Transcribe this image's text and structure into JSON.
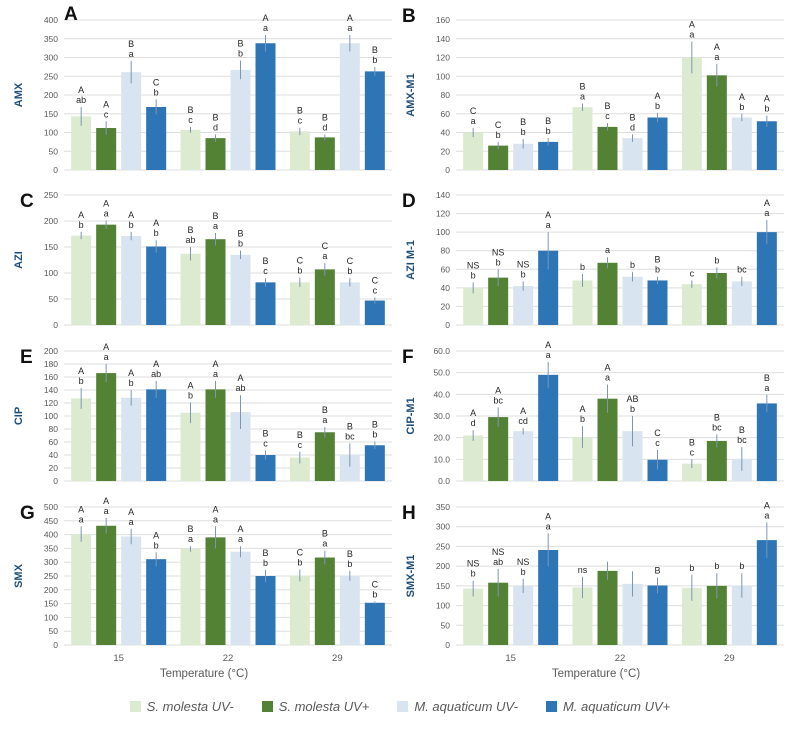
{
  "figure": {
    "xlabel": "Temperature (°C)",
    "categories": [
      "15",
      "22",
      "29"
    ],
    "legend": [
      {
        "label": "S. molesta UV-",
        "color": "#dcead0"
      },
      {
        "label": "S. molesta UV+",
        "color": "#548235"
      },
      {
        "label": "M. aquaticum UV-",
        "color": "#d9e4f1"
      },
      {
        "label": "M. aquaticum UV+",
        "color": "#2e75b6"
      }
    ],
    "style": {
      "grid_color": "#dedede",
      "error_bar_color": "#7e96b5",
      "tick_label_color": "#595959",
      "ylabel_color": "#1f4e79",
      "annotation_color": "#262626"
    }
  },
  "chart_data": [
    {
      "type": "bar",
      "letter": "A",
      "ylabel": "AMX",
      "ylim": [
        0,
        400
      ],
      "ystep": 50,
      "decimals": 0,
      "categories": [
        "15",
        "22",
        "29"
      ],
      "series": [
        {
          "name": "S. molesta UV-",
          "values": [
            143,
            107,
            103
          ],
          "errors": [
            25,
            8,
            10
          ],
          "ann": [
            [
              "A",
              "ab"
            ],
            [
              "B",
              "c"
            ],
            [
              "B",
              "c"
            ]
          ]
        },
        {
          "name": "S. molesta UV+",
          "values": [
            112,
            85,
            87
          ],
          "errors": [
            18,
            10,
            8
          ],
          "ann": [
            [
              "A",
              "c"
            ],
            [
              "B",
              "d"
            ],
            [
              "B",
              "d"
            ]
          ]
        },
        {
          "name": "M. aquaticum UV-",
          "values": [
            261,
            267,
            338
          ],
          "errors": [
            30,
            25,
            22
          ],
          "ann": [
            [
              "B",
              "a"
            ],
            [
              "B",
              "b"
            ],
            [
              "A",
              "a"
            ]
          ]
        },
        {
          "name": "M. aquaticum UV+",
          "values": [
            168,
            338,
            263
          ],
          "errors": [
            20,
            22,
            12
          ],
          "ann": [
            [
              "C",
              "b"
            ],
            [
              "A",
              "a"
            ],
            [
              "B",
              "b"
            ]
          ]
        }
      ]
    },
    {
      "type": "bar",
      "letter": "B",
      "ylabel": "AMX-M1",
      "ylim": [
        0,
        160
      ],
      "ystep": 20,
      "decimals": 0,
      "categories": [
        "15",
        "22",
        "29"
      ],
      "series": [
        {
          "name": "S. molesta UV-",
          "values": [
            40,
            67,
            120
          ],
          "errors": [
            5,
            4,
            17
          ],
          "ann": [
            [
              "C",
              "a"
            ],
            [
              "B",
              "a"
            ],
            [
              "A",
              "a"
            ]
          ]
        },
        {
          "name": "S. molesta UV+",
          "values": [
            26,
            46,
            101
          ],
          "errors": [
            4,
            4,
            12
          ],
          "ann": [
            [
              "C",
              "b"
            ],
            [
              "B",
              "c"
            ],
            [
              "A",
              "a"
            ]
          ]
        },
        {
          "name": "M. aquaticum UV-",
          "values": [
            28,
            34,
            56
          ],
          "errors": [
            5,
            4,
            4
          ],
          "ann": [
            [
              "B",
              "b"
            ],
            [
              "B",
              "d"
            ],
            [
              "A",
              "b"
            ]
          ]
        },
        {
          "name": "M. aquaticum UV+",
          "values": [
            30,
            56,
            52
          ],
          "errors": [
            4,
            5,
            6
          ],
          "ann": [
            [
              "B",
              "b"
            ],
            [
              "A",
              "b"
            ],
            [
              "A",
              "b"
            ]
          ]
        }
      ]
    },
    {
      "type": "bar",
      "letter": "C",
      "ylabel": "AZI",
      "ylim": [
        0,
        250
      ],
      "ystep": 50,
      "decimals": 0,
      "categories": [
        "15",
        "22",
        "29"
      ],
      "series": [
        {
          "name": "S. molesta UV-",
          "values": [
            172,
            137,
            82
          ],
          "errors": [
            7,
            13,
            9
          ],
          "ann": [
            [
              "A",
              "b"
            ],
            [
              "B",
              "ab"
            ],
            [
              "C",
              "b"
            ]
          ]
        },
        {
          "name": "S. molesta UV+",
          "values": [
            193,
            165,
            107
          ],
          "errors": [
            8,
            12,
            12
          ],
          "ann": [
            [
              "A",
              "a"
            ],
            [
              "B",
              "a"
            ],
            [
              "C",
              "a"
            ]
          ]
        },
        {
          "name": "M. aquaticum UV-",
          "values": [
            171,
            135,
            82
          ],
          "errors": [
            8,
            8,
            8
          ],
          "ann": [
            [
              "A",
              "b"
            ],
            [
              "B",
              "b"
            ],
            [
              "C",
              "b"
            ]
          ]
        },
        {
          "name": "M. aquaticum UV+",
          "values": [
            151,
            82,
            47
          ],
          "errors": [
            12,
            8,
            6
          ],
          "ann": [
            [
              "A",
              "b"
            ],
            [
              "B",
              "c"
            ],
            [
              "C",
              "c"
            ]
          ]
        }
      ]
    },
    {
      "type": "bar",
      "letter": "D",
      "ylabel": "AZI M-1",
      "ylim": [
        0,
        140
      ],
      "ystep": 20,
      "decimals": 0,
      "categories": [
        "15",
        "22",
        "29"
      ],
      "series": [
        {
          "name": "S. molesta UV-",
          "values": [
            40,
            48,
            44
          ],
          "errors": [
            6,
            7,
            4
          ],
          "ann": [
            [
              "NS",
              "b"
            ],
            [
              "",
              "b"
            ],
            [
              "",
              "c"
            ]
          ]
        },
        {
          "name": "S. molesta UV+",
          "values": [
            51,
            67,
            56
          ],
          "errors": [
            9,
            6,
            6
          ],
          "ann": [
            [
              "NS",
              "b"
            ],
            [
              "",
              "a"
            ],
            [
              "",
              "b"
            ]
          ]
        },
        {
          "name": "M. aquaticum UV-",
          "values": [
            42,
            52,
            47
          ],
          "errors": [
            5,
            5,
            5
          ],
          "ann": [
            [
              "NS",
              "b"
            ],
            [
              "",
              "b"
            ],
            [
              "",
              "bc"
            ]
          ]
        },
        {
          "name": "M. aquaticum UV+",
          "values": [
            80,
            48,
            100
          ],
          "errors": [
            20,
            4,
            13
          ],
          "ann": [
            [
              "A",
              "a"
            ],
            [
              "B",
              "b"
            ],
            [
              "A",
              "a"
            ]
          ]
        }
      ]
    },
    {
      "type": "bar",
      "letter": "E",
      "ylabel": "CIP",
      "ylim": [
        0,
        200
      ],
      "ystep": 20,
      "decimals": 0,
      "categories": [
        "15",
        "22",
        "29"
      ],
      "series": [
        {
          "name": "S. molesta UV-",
          "values": [
            127,
            105,
            36
          ],
          "errors": [
            16,
            16,
            9
          ],
          "ann": [
            [
              "A",
              "b"
            ],
            [
              "A",
              "b"
            ],
            [
              "B",
              "c"
            ]
          ]
        },
        {
          "name": "S. molesta UV+",
          "values": [
            166,
            141,
            75
          ],
          "errors": [
            14,
            13,
            8
          ],
          "ann": [
            [
              "A",
              "a"
            ],
            [
              "A",
              "a"
            ],
            [
              "B",
              "a"
            ]
          ]
        },
        {
          "name": "M. aquaticum UV-",
          "values": [
            128,
            106,
            40
          ],
          "errors": [
            12,
            26,
            18
          ],
          "ann": [
            [
              "A",
              "b"
            ],
            [
              "A",
              "ab"
            ],
            [
              "B",
              "bc"
            ]
          ]
        },
        {
          "name": "M. aquaticum UV+",
          "values": [
            141,
            40,
            55
          ],
          "errors": [
            13,
            7,
            6
          ],
          "ann": [
            [
              "A",
              "ab"
            ],
            [
              "B",
              "c"
            ],
            [
              "B",
              "b"
            ]
          ]
        }
      ]
    },
    {
      "type": "bar",
      "letter": "F",
      "ylabel": "CIP-M1",
      "ylim": [
        0,
        60
      ],
      "ystep": 10,
      "decimals": 1,
      "categories": [
        "15",
        "22",
        "29"
      ],
      "series": [
        {
          "name": "S. molesta UV-",
          "values": [
            21,
            20.3,
            8
          ],
          "errors": [
            2.5,
            5,
            2
          ],
          "ann": [
            [
              "A",
              "d"
            ],
            [
              "A",
              "b"
            ],
            [
              "B",
              "c"
            ]
          ]
        },
        {
          "name": "S. molesta UV+",
          "values": [
            29.5,
            38,
            18.5
          ],
          "errors": [
            4.5,
            6.5,
            3
          ],
          "ann": [
            [
              "A",
              "bc"
            ],
            [
              "A",
              "a"
            ],
            [
              "B",
              "bc"
            ]
          ]
        },
        {
          "name": "M. aquaticum UV-",
          "values": [
            23,
            23,
            10.2
          ],
          "errors": [
            1.5,
            7,
            5.5
          ],
          "ann": [
            [
              "A",
              "cd"
            ],
            [
              "AB",
              "b"
            ],
            [
              "B",
              "bc"
            ]
          ]
        },
        {
          "name": "M. aquaticum UV+",
          "values": [
            49,
            9.8,
            35.8
          ],
          "errors": [
            6,
            4.5,
            4
          ],
          "ann": [
            [
              "A",
              "a"
            ],
            [
              "C",
              "c"
            ],
            [
              "B",
              "a"
            ]
          ]
        }
      ]
    },
    {
      "type": "bar",
      "letter": "G",
      "ylabel": "SMX",
      "ylim": [
        0,
        500
      ],
      "ystep": 50,
      "decimals": 0,
      "categories": [
        "15",
        "22",
        "29"
      ],
      "series": [
        {
          "name": "S. molesta UV-",
          "values": [
            402,
            348,
            252
          ],
          "errors": [
            28,
            10,
            22
          ],
          "ann": [
            [
              "A",
              "a"
            ],
            [
              "B",
              "a"
            ],
            [
              "C",
              "b"
            ]
          ]
        },
        {
          "name": "S. molesta UV+",
          "values": [
            432,
            390,
            317
          ],
          "errors": [
            28,
            40,
            25
          ],
          "ann": [
            [
              "A",
              "a"
            ],
            [
              "A",
              "a"
            ],
            [
              "B",
              "a"
            ]
          ]
        },
        {
          "name": "M. aquaticum UV-",
          "values": [
            393,
            338,
            251
          ],
          "errors": [
            28,
            20,
            18
          ],
          "ann": [
            [
              "A",
              "a"
            ],
            [
              "A",
              "a"
            ],
            [
              "B",
              "b"
            ]
          ]
        },
        {
          "name": "M. aquaticum UV+",
          "values": [
            311,
            250,
            153
          ],
          "errors": [
            25,
            22,
            5
          ],
          "ann": [
            [
              "A",
              "b"
            ],
            [
              "B",
              "b"
            ],
            [
              "C",
              "b"
            ]
          ]
        }
      ]
    },
    {
      "type": "bar",
      "letter": "H",
      "ylabel": "SMX-M1",
      "ylim": [
        0,
        350
      ],
      "ystep": 50,
      "decimals": 0,
      "categories": [
        "15",
        "22",
        "29"
      ],
      "series": [
        {
          "name": "S. molesta UV-",
          "values": [
            143,
            146,
            145
          ],
          "errors": [
            20,
            27,
            33
          ],
          "ann": [
            [
              "NS",
              "b"
            ],
            [
              "ns",
              ""
            ],
            [
              "",
              "b"
            ]
          ]
        },
        {
          "name": "S. molesta UV+",
          "values": [
            158,
            188,
            150
          ],
          "errors": [
            35,
            23,
            32
          ],
          "ann": [
            [
              "NS",
              "ab"
            ],
            [
              "",
              ""
            ],
            [
              "",
              "b"
            ]
          ]
        },
        {
          "name": "M. aquaticum UV-",
          "values": [
            150,
            155,
            151
          ],
          "errors": [
            18,
            32,
            31
          ],
          "ann": [
            [
              "NS",
              "b"
            ],
            [
              "",
              ""
            ],
            [
              "",
              "b"
            ]
          ]
        },
        {
          "name": "M. aquaticum UV+",
          "values": [
            241,
            151,
            266
          ],
          "errors": [
            42,
            20,
            45
          ],
          "ann": [
            [
              "A",
              "a"
            ],
            [
              "B",
              ""
            ],
            [
              "A",
              "a"
            ]
          ]
        }
      ]
    }
  ]
}
